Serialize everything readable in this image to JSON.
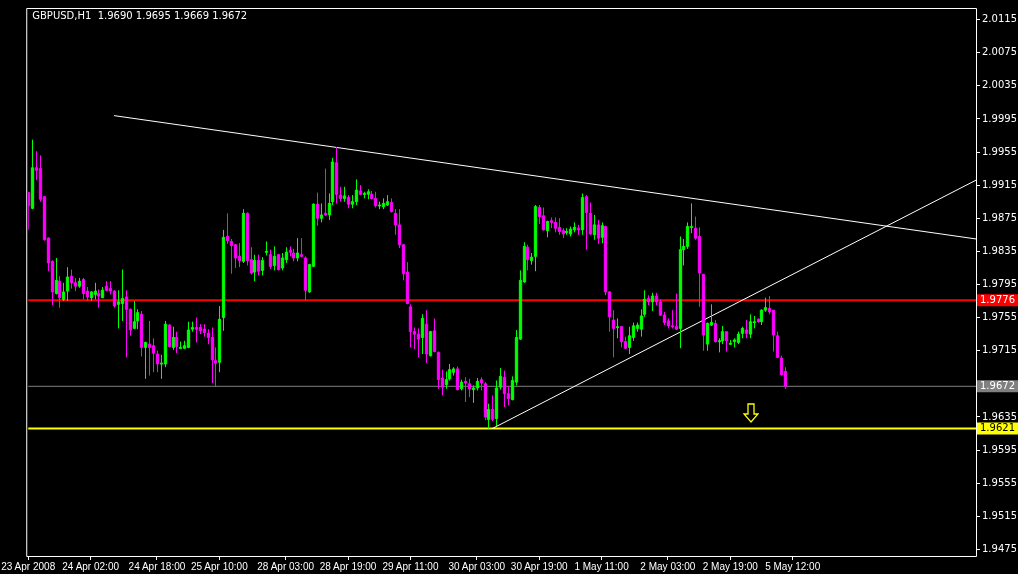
{
  "chart_data": {
    "type": "candlestick",
    "title": "GBPUSD,H1  1.9690 1.9695 1.9669 1.9672",
    "ylim": [
      1.9467,
      2.0129
    ],
    "categories": [
      "23 Apr 2008",
      null,
      null,
      null,
      null,
      null,
      null,
      null,
      null,
      null,
      null,
      null,
      null,
      null,
      null,
      null,
      "24 Apr 02:00",
      null,
      null,
      null,
      null,
      null,
      null,
      null,
      null,
      null,
      null,
      null,
      null,
      null,
      null,
      null,
      null,
      "24 Apr 18:00",
      null,
      null,
      null,
      null,
      null,
      null,
      null,
      null,
      null,
      null,
      null,
      null,
      null,
      null,
      null,
      "25 Apr 10:00",
      null,
      null,
      null,
      null,
      null,
      null,
      null,
      null,
      null,
      null,
      null,
      null,
      null,
      null,
      null,
      null,
      "28 Apr 03:00",
      null,
      null,
      null,
      null,
      null,
      null,
      null,
      null,
      null,
      null,
      null,
      null,
      null,
      null,
      null,
      "28 Apr 19:00",
      null,
      null,
      null,
      null,
      null,
      null,
      null,
      null,
      null,
      null,
      null,
      null,
      null,
      null,
      null,
      "29 Apr 11:00",
      null,
      null,
      null,
      null,
      null,
      null,
      null,
      null,
      null,
      null,
      null,
      null,
      null,
      null,
      null,
      null,
      "30 Apr 03:00",
      null,
      null,
      null,
      null,
      null,
      null,
      null,
      null,
      null,
      null,
      null,
      null,
      null,
      null,
      null,
      "30 Apr 19:00",
      null,
      null,
      null,
      null,
      null,
      null,
      null,
      null,
      null,
      null,
      null,
      null,
      null,
      null,
      null,
      "1 May 11:00",
      null,
      null,
      null,
      null,
      null,
      null,
      null,
      null,
      null,
      null,
      null,
      null,
      null,
      null,
      null,
      null,
      "2 May 03:00",
      null,
      null,
      null,
      null,
      null,
      null,
      null,
      null,
      null,
      null,
      null,
      null,
      null,
      null,
      null,
      "2 May 19:00",
      null,
      null,
      null,
      null,
      null,
      null,
      null,
      null,
      null,
      null,
      null,
      null,
      null,
      null,
      null,
      "5 May 12:00",
      null,
      null,
      null,
      null,
      null,
      null,
      null,
      null,
      null,
      null,
      null,
      null,
      null,
      null,
      null,
      null,
      null,
      null,
      null,
      null,
      null,
      null,
      null,
      null,
      null,
      null,
      null,
      null,
      null,
      null,
      null,
      null,
      null,
      null,
      null,
      null,
      null,
      null,
      null,
      null,
      null,
      null,
      null,
      null,
      null,
      null,
      null
    ],
    "yticks": [
      2.0115,
      2.0075,
      2.0035,
      1.9995,
      1.9955,
      1.9915,
      1.9875,
      1.9835,
      1.9795,
      1.9755,
      1.9715,
      1.9635,
      1.9595,
      1.9555,
      1.9515,
      1.9475
    ],
    "grid": false,
    "legend": false,
    "ref_lines": [
      {
        "axis": "y",
        "value": 1.9776,
        "label": "1.9776",
        "color": "#ff0000"
      },
      {
        "axis": "y",
        "value": 1.9672,
        "label": "1.9672",
        "color": "#808080"
      },
      {
        "axis": "y",
        "value": 1.9621,
        "label": "1.9621",
        "color": "#ffff00"
      }
    ],
    "series": [
      {
        "ohlc": [
          [
            1.9906,
            1.9907,
            1.9861,
            1.989
          ],
          [
            1.9887,
            1.997,
            1.9886,
            1.9936
          ],
          [
            1.9936,
            1.9956,
            1.9921,
            1.9933
          ],
          [
            1.9935,
            1.9951,
            1.9895,
            1.9898
          ],
          [
            1.9901,
            1.9902,
            1.9848,
            1.9849
          ],
          [
            1.9851,
            1.9852,
            1.9811,
            1.9821
          ],
          [
            1.9823,
            1.9824,
            1.977,
            1.9786
          ],
          [
            1.9784,
            1.9827,
            1.9783,
            1.98
          ],
          [
            1.9799,
            1.9805,
            1.9767,
            1.9779
          ],
          [
            1.9777,
            1.9797,
            1.9775,
            1.9786
          ],
          [
            1.9787,
            1.9816,
            1.9775,
            1.9804
          ],
          [
            1.9805,
            1.9813,
            1.979,
            1.9797
          ],
          [
            1.9797,
            1.9803,
            1.9787,
            1.9793
          ],
          [
            1.9793,
            1.9803,
            1.9791,
            1.9799
          ],
          [
            1.9801,
            1.9803,
            1.9777,
            1.9784
          ],
          [
            1.9787,
            1.9792,
            1.9775,
            1.978
          ],
          [
            1.9779,
            1.9787,
            1.9775,
            1.9786
          ],
          [
            1.9783,
            1.9797,
            1.9777,
            1.9787
          ],
          [
            1.9784,
            1.9789,
            1.9767,
            1.9781
          ],
          [
            1.9779,
            1.9792,
            1.9779,
            1.9788
          ],
          [
            1.9793,
            1.9799,
            1.9787,
            1.9788
          ],
          [
            1.979,
            1.9799,
            1.9783,
            1.9787
          ],
          [
            1.9787,
            1.9788,
            1.9767,
            1.9769
          ],
          [
            1.9771,
            1.9788,
            1.9742,
            1.9774
          ],
          [
            1.9772,
            1.9813,
            1.9751,
            1.9778
          ],
          [
            1.978,
            1.9788,
            1.9707,
            1.9765
          ],
          [
            1.9765,
            1.9766,
            1.9733,
            1.974
          ],
          [
            1.9742,
            1.9775,
            1.9741,
            1.975
          ],
          [
            1.9751,
            1.9765,
            1.9741,
            1.9761
          ],
          [
            1.9759,
            1.9763,
            1.9708,
            1.9719
          ],
          [
            1.9719,
            1.9726,
            1.9681,
            1.9725
          ],
          [
            1.9723,
            1.9751,
            1.9685,
            1.9719
          ],
          [
            1.9721,
            1.973,
            1.9689,
            1.9712
          ],
          [
            1.9711,
            1.9715,
            1.9689,
            1.9699
          ],
          [
            1.9699,
            1.971,
            1.9681,
            1.97
          ],
          [
            1.9699,
            1.9751,
            1.9695,
            1.9747
          ],
          [
            1.9746,
            1.9747,
            1.9719,
            1.972
          ],
          [
            1.9719,
            1.9744,
            1.9716,
            1.9731
          ],
          [
            1.9731,
            1.9738,
            1.9712,
            1.972
          ],
          [
            1.9718,
            1.9726,
            1.9717,
            1.9719
          ],
          [
            1.9718,
            1.9727,
            1.9717,
            1.9721
          ],
          [
            1.9719,
            1.975,
            1.9718,
            1.974
          ],
          [
            1.9741,
            1.975,
            1.9738,
            1.9743
          ],
          [
            1.9743,
            1.9755,
            1.9725,
            1.9741
          ],
          [
            1.9743,
            1.9747,
            1.9735,
            1.9739
          ],
          [
            1.9741,
            1.9747,
            1.9732,
            1.9737
          ],
          [
            1.9736,
            1.9741,
            1.9723,
            1.9731
          ],
          [
            1.9731,
            1.9743,
            1.9676,
            1.9704
          ],
          [
            1.9703,
            1.9719,
            1.9671,
            1.97
          ],
          [
            1.9701,
            1.9769,
            1.9689,
            1.9753
          ],
          [
            1.9755,
            1.9861,
            1.9739,
            1.9852
          ],
          [
            1.9853,
            1.9881,
            1.9844,
            1.9848
          ],
          [
            1.9847,
            1.985,
            1.9808,
            1.9842
          ],
          [
            1.9843,
            1.9844,
            1.9815,
            1.9827
          ],
          [
            1.9829,
            1.9845,
            1.9816,
            1.9824
          ],
          [
            1.9823,
            1.9886,
            1.9821,
            1.9881
          ],
          [
            1.9881,
            1.9882,
            1.9818,
            1.9824
          ],
          [
            1.9825,
            1.984,
            1.9807,
            1.9809
          ],
          [
            1.981,
            1.9831,
            1.9799,
            1.9824
          ],
          [
            1.9824,
            1.9831,
            1.9806,
            1.9811
          ],
          [
            1.9812,
            1.9828,
            1.9806,
            1.9824
          ],
          [
            1.9834,
            1.9847,
            1.983,
            1.9835
          ],
          [
            1.9831,
            1.9837,
            1.9814,
            1.9817
          ],
          [
            1.9818,
            1.9841,
            1.9812,
            1.9829
          ],
          [
            1.9831,
            1.9832,
            1.9812,
            1.9813
          ],
          [
            1.9815,
            1.9833,
            1.9812,
            1.9827
          ],
          [
            1.9825,
            1.984,
            1.9821,
            1.9834
          ],
          [
            1.9836,
            1.9841,
            1.9829,
            1.9834
          ],
          [
            1.9833,
            1.9838,
            1.9823,
            1.9827
          ],
          [
            1.9827,
            1.9851,
            1.9823,
            1.9833
          ],
          [
            1.9831,
            1.9851,
            1.9828,
            1.9829
          ],
          [
            1.9827,
            1.9829,
            1.9776,
            1.9788
          ],
          [
            1.9786,
            1.982,
            1.9785,
            1.9819
          ],
          [
            1.9817,
            1.9893,
            1.9816,
            1.9892
          ],
          [
            1.9892,
            1.9906,
            1.9866,
            1.9875
          ],
          [
            1.9875,
            1.9893,
            1.987,
            1.9879
          ],
          [
            1.9881,
            1.9935,
            1.9878,
            1.9879
          ],
          [
            1.9879,
            1.9905,
            1.9873,
            1.9893
          ],
          [
            1.9895,
            1.9948,
            1.9891,
            1.9943
          ],
          [
            1.9942,
            1.9961,
            1.9893,
            1.9904
          ],
          [
            1.9903,
            1.9913,
            1.9895,
            1.9899
          ],
          [
            1.9899,
            1.9913,
            1.9895,
            1.9902
          ],
          [
            1.99,
            1.9903,
            1.9887,
            1.9892
          ],
          [
            1.9892,
            1.9903,
            1.9887,
            1.9895
          ],
          [
            1.9895,
            1.9922,
            1.9891,
            1.9909
          ],
          [
            1.9908,
            1.9915,
            1.9903,
            1.9904
          ],
          [
            1.9904,
            1.9907,
            1.9899,
            1.9905
          ],
          [
            1.9904,
            1.991,
            1.9898,
            1.9907
          ],
          [
            1.9904,
            1.9908,
            1.9898,
            1.9899
          ],
          [
            1.9899,
            1.9907,
            1.9888,
            1.989
          ],
          [
            1.989,
            1.9895,
            1.9886,
            1.9891
          ],
          [
            1.9889,
            1.9899,
            1.9886,
            1.9893
          ],
          [
            1.9891,
            1.9903,
            1.989,
            1.9895
          ],
          [
            1.9894,
            1.9899,
            1.9882,
            1.9883
          ],
          [
            1.9881,
            1.9886,
            1.9855,
            1.9867
          ],
          [
            1.9867,
            1.9886,
            1.9839,
            1.9843
          ],
          [
            1.9843,
            1.9844,
            1.98,
            1.9808
          ],
          [
            1.981,
            1.9822,
            1.9771,
            1.9772
          ],
          [
            1.9768,
            1.9771,
            1.9719,
            1.9738
          ],
          [
            1.9738,
            1.9743,
            1.9717,
            1.9735
          ],
          [
            1.9735,
            1.9742,
            1.9707,
            1.9729
          ],
          [
            1.9731,
            1.9759,
            1.9711,
            1.9754
          ],
          [
            1.9747,
            1.9764,
            1.97,
            1.9711
          ],
          [
            1.9709,
            1.9739,
            1.9708,
            1.9738
          ],
          [
            1.9739,
            1.9754,
            1.9713,
            1.9714
          ],
          [
            1.9713,
            1.9714,
            1.9669,
            1.968
          ],
          [
            1.9682,
            1.9692,
            1.9661,
            1.9671
          ],
          [
            1.9674,
            1.969,
            1.9669,
            1.968
          ],
          [
            1.9681,
            1.9699,
            1.9679,
            1.9692
          ],
          [
            1.9689,
            1.9695,
            1.9685,
            1.9693
          ],
          [
            1.9693,
            1.9696,
            1.9667,
            1.9668
          ],
          [
            1.9669,
            1.968,
            1.9667,
            1.9677
          ],
          [
            1.9678,
            1.9683,
            1.9653,
            1.9676
          ],
          [
            1.9675,
            1.9681,
            1.9659,
            1.9669
          ],
          [
            1.9668,
            1.9673,
            1.9652,
            1.967
          ],
          [
            1.967,
            1.9682,
            1.9667,
            1.9678
          ],
          [
            1.968,
            1.9683,
            1.9667,
            1.9676
          ],
          [
            1.9675,
            1.9677,
            1.9631,
            1.9635
          ],
          [
            1.9632,
            1.9651,
            1.9621,
            1.9644
          ],
          [
            1.9644,
            1.9661,
            1.963,
            1.9632
          ],
          [
            1.9633,
            1.9679,
            1.9624,
            1.967
          ],
          [
            1.9671,
            1.9694,
            1.9668,
            1.9684
          ],
          [
            1.9683,
            1.9691,
            1.9647,
            1.9663
          ],
          [
            1.9663,
            1.9672,
            1.9649,
            1.9657
          ],
          [
            1.9656,
            1.9684,
            1.9655,
            1.9679
          ],
          [
            1.9677,
            1.974,
            1.9673,
            1.9731
          ],
          [
            1.9729,
            1.9812,
            1.9728,
            1.98
          ],
          [
            1.9798,
            1.9846,
            1.9797,
            1.9841
          ],
          [
            1.984,
            1.9843,
            1.9812,
            1.9825
          ],
          [
            1.9824,
            1.9833,
            1.9819,
            1.9828
          ],
          [
            1.9829,
            1.9891,
            1.9811,
            1.9889
          ],
          [
            1.9888,
            1.9891,
            1.9868,
            1.9877
          ],
          [
            1.9878,
            1.9888,
            1.986,
            1.9861
          ],
          [
            1.986,
            1.9872,
            1.9852,
            1.9871
          ],
          [
            1.9872,
            1.9876,
            1.9863,
            1.987
          ],
          [
            1.987,
            1.9876,
            1.9858,
            1.9863
          ],
          [
            1.9864,
            1.9875,
            1.9855,
            1.9859
          ],
          [
            1.986,
            1.9863,
            1.9851,
            1.9856
          ],
          [
            1.9858,
            1.9863,
            1.9855,
            1.9859
          ],
          [
            1.9856,
            1.9865,
            1.9853,
            1.9862
          ],
          [
            1.9861,
            1.987,
            1.9858,
            1.9864
          ],
          [
            1.9863,
            1.9867,
            1.9855,
            1.9861
          ],
          [
            1.9861,
            1.9905,
            1.9855,
            1.99
          ],
          [
            1.9901,
            1.9903,
            1.9837,
            1.9882
          ],
          [
            1.9881,
            1.9894,
            1.9855,
            1.9856
          ],
          [
            1.9855,
            1.9879,
            1.9849,
            1.9867
          ],
          [
            1.9867,
            1.9873,
            1.9844,
            1.9851
          ],
          [
            1.9852,
            1.987,
            1.9845,
            1.9866
          ],
          [
            1.9865,
            1.9866,
            1.9782,
            1.9786
          ],
          [
            1.9786,
            1.9787,
            1.9738,
            1.9756
          ],
          [
            1.9752,
            1.9764,
            1.9707,
            1.9742
          ],
          [
            1.9743,
            1.9754,
            1.973,
            1.9744
          ],
          [
            1.9744,
            1.9745,
            1.9719,
            1.9726
          ],
          [
            1.9726,
            1.9732,
            1.9717,
            1.9718
          ],
          [
            1.9719,
            1.9744,
            1.9711,
            1.9733
          ],
          [
            1.9731,
            1.9749,
            1.9727,
            1.9745
          ],
          [
            1.9742,
            1.9749,
            1.9738,
            1.9746
          ],
          [
            1.9741,
            1.9765,
            1.9732,
            1.9757
          ],
          [
            1.9759,
            1.9788,
            1.9756,
            1.9777
          ],
          [
            1.9778,
            1.9782,
            1.977,
            1.9774
          ],
          [
            1.9774,
            1.9785,
            1.9763,
            1.9781
          ],
          [
            1.9781,
            1.9785,
            1.977,
            1.9774
          ],
          [
            1.9774,
            1.9777,
            1.9757,
            1.9758
          ],
          [
            1.9758,
            1.9762,
            1.9746,
            1.9749
          ],
          [
            1.9751,
            1.9754,
            1.9742,
            1.9745
          ],
          [
            1.9745,
            1.9764,
            1.9742,
            1.9744
          ],
          [
            1.9744,
            1.9784,
            1.974,
            1.9741
          ],
          [
            1.9742,
            1.9853,
            1.9718,
            1.9837
          ],
          [
            1.9837,
            1.985,
            1.9818,
            1.9841
          ],
          [
            1.9841,
            1.987,
            1.9838,
            1.9865
          ],
          [
            1.9864,
            1.9893,
            1.9857,
            1.9865
          ],
          [
            1.9863,
            1.9877,
            1.9849,
            1.9851
          ],
          [
            1.9853,
            1.9864,
            1.9768,
            1.9809
          ],
          [
            1.9807,
            1.9808,
            1.9715,
            1.9734
          ],
          [
            1.9723,
            1.9749,
            1.9715,
            1.9748
          ],
          [
            1.9746,
            1.9771,
            1.9745,
            1.9749
          ],
          [
            1.9748,
            1.9752,
            1.9725,
            1.9726
          ],
          [
            1.9726,
            1.973,
            1.9713,
            1.9727
          ],
          [
            1.9727,
            1.9745,
            1.9723,
            1.9738
          ],
          [
            1.9738,
            1.9738,
            1.9714,
            1.9727
          ],
          [
            1.9723,
            1.9728,
            1.9722,
            1.9724
          ],
          [
            1.9726,
            1.973,
            1.9719,
            1.9728
          ],
          [
            1.9725,
            1.9738,
            1.9723,
            1.9735
          ],
          [
            1.9736,
            1.9744,
            1.973,
            1.9742
          ],
          [
            1.974,
            1.9752,
            1.973,
            1.9736
          ],
          [
            1.9735,
            1.9759,
            1.973,
            1.975
          ],
          [
            1.9749,
            1.9757,
            1.9742,
            1.975
          ],
          [
            1.9753,
            1.9754,
            1.9749,
            1.975
          ],
          [
            1.975,
            1.9765,
            1.9746,
            1.9764
          ],
          [
            1.9764,
            1.9779,
            1.9762,
            1.9767
          ],
          [
            1.9766,
            1.9781,
            1.9759,
            1.9762
          ],
          [
            1.9764,
            1.9764,
            1.9714,
            1.9734
          ],
          [
            1.9733,
            1.9738,
            1.9706,
            1.9707
          ],
          [
            1.9706,
            1.9709,
            1.9685,
            1.9686
          ],
          [
            1.969,
            1.9695,
            1.9669,
            1.9672
          ],
          null,
          null,
          null,
          null,
          null,
          null,
          null,
          null,
          null,
          null,
          null,
          null,
          null,
          null,
          null,
          null,
          null,
          null,
          null,
          null,
          null,
          null,
          null,
          null,
          null,
          null,
          null,
          null,
          null,
          null,
          null,
          null,
          null,
          null,
          null,
          null,
          null,
          null,
          null,
          null,
          null,
          null,
          null,
          null,
          null,
          null,
          null,
          null,
          null
        ],
        "colors": [
          "#ff00ff",
          "#00ff00",
          "#ff00ff",
          "#ff00ff",
          "#ff00ff",
          "#ff00ff",
          "#ff00ff",
          "#00ff00",
          "#ff00ff",
          "#00ff00",
          "#00ff00",
          "#ff00ff",
          "#ff00ff",
          "#00ff00",
          "#ff00ff",
          "#ff00ff",
          "#00ff00",
          "#00ff00",
          "#ff00ff",
          "#00ff00",
          "#ff00ff",
          "#ff00ff",
          "#ff00ff",
          "#00ff00",
          "#00ff00",
          "#ff00ff",
          "#ff00ff",
          "#00ff00",
          "#00ff00",
          "#ff00ff",
          "#00ff00",
          "#ff00ff",
          "#ff00ff",
          "#ff00ff",
          "#00ff00",
          "#00ff00",
          "#ff00ff",
          "#00ff00",
          "#ff00ff",
          "#00ff00",
          "#00ff00",
          "#00ff00",
          "#00ff00",
          "#ff00ff",
          "#ff00ff",
          "#ff00ff",
          "#ff00ff",
          "#ff00ff",
          "#ff00ff",
          "#00ff00",
          "#00ff00",
          "#ff00ff",
          "#ff00ff",
          "#ff00ff",
          "#ff00ff",
          "#00ff00",
          "#ff00ff",
          "#ff00ff",
          "#00ff00",
          "#ff00ff",
          "#00ff00",
          "#00ff00",
          "#ff00ff",
          "#00ff00",
          "#ff00ff",
          "#00ff00",
          "#00ff00",
          "#ff00ff",
          "#ff00ff",
          "#00ff00",
          "#ff00ff",
          "#ff00ff",
          "#00ff00",
          "#00ff00",
          "#ff00ff",
          "#00ff00",
          "#ff00ff",
          "#00ff00",
          "#00ff00",
          "#ff00ff",
          "#ff00ff",
          "#00ff00",
          "#ff00ff",
          "#00ff00",
          "#00ff00",
          "#ff00ff",
          "#00ff00",
          "#00ff00",
          "#ff00ff",
          "#ff00ff",
          "#00ff00",
          "#00ff00",
          "#00ff00",
          "#ff00ff",
          "#ff00ff",
          "#ff00ff",
          "#ff00ff",
          "#ff00ff",
          "#ff00ff",
          "#ff00ff",
          "#ff00ff",
          "#00ff00",
          "#ff00ff",
          "#00ff00",
          "#ff00ff",
          "#ff00ff",
          "#ff00ff",
          "#00ff00",
          "#00ff00",
          "#00ff00",
          "#ff00ff",
          "#00ff00",
          "#ff00ff",
          "#ff00ff",
          "#00ff00",
          "#00ff00",
          "#ff00ff",
          "#ff00ff",
          "#00ff00",
          "#ff00ff",
          "#00ff00",
          "#00ff00",
          "#ff00ff",
          "#ff00ff",
          "#00ff00",
          "#00ff00",
          "#00ff00",
          "#00ff00",
          "#ff00ff",
          "#00ff00",
          "#00ff00",
          "#ff00ff",
          "#ff00ff",
          "#00ff00",
          "#ff00ff",
          "#ff00ff",
          "#ff00ff",
          "#ff00ff",
          "#00ff00",
          "#00ff00",
          "#00ff00",
          "#ff00ff",
          "#00ff00",
          "#ff00ff",
          "#ff00ff",
          "#00ff00",
          "#ff00ff",
          "#00ff00",
          "#ff00ff",
          "#ff00ff",
          "#ff00ff",
          "#00ff00",
          "#ff00ff",
          "#ff00ff",
          "#00ff00",
          "#00ff00",
          "#00ff00",
          "#00ff00",
          "#00ff00",
          "#ff00ff",
          "#00ff00",
          "#ff00ff",
          "#ff00ff",
          "#ff00ff",
          "#ff00ff",
          "#ff00ff",
          "#ff00ff",
          "#00ff00",
          "#00ff00",
          "#00ff00",
          "#00ff00",
          "#ff00ff",
          "#ff00ff",
          "#ff00ff",
          "#00ff00",
          "#00ff00",
          "#ff00ff",
          "#00ff00",
          "#00ff00",
          "#ff00ff",
          "#00ff00",
          "#00ff00",
          "#00ff00",
          "#00ff00",
          "#ff00ff",
          "#00ff00",
          "#00ff00",
          "#ff00ff",
          "#00ff00",
          "#00ff00",
          "#ff00ff",
          "#ff00ff",
          "#ff00ff",
          "#ff00ff",
          "#ff00ff",
          null,
          null,
          null,
          null,
          null,
          null,
          null,
          null,
          null,
          null,
          null,
          null,
          null,
          null,
          null,
          null,
          null,
          null,
          null,
          null,
          null,
          null,
          null,
          null,
          null,
          null,
          null,
          null,
          null,
          null,
          null,
          null,
          null,
          null,
          null,
          null,
          null,
          null,
          null,
          null,
          null,
          null,
          null,
          null,
          null,
          null,
          null,
          null,
          null
        ]
      },
      {
        "type": "line",
        "color": "#ffffff",
        "values": [
          null,
          null,
          null,
          null,
          null,
          null,
          null,
          null,
          null,
          null,
          null,
          null,
          null,
          null,
          null,
          null,
          null,
          null,
          null,
          null,
          null,
          null,
          1.9999,
          null,
          null,
          null,
          null,
          null,
          null,
          null,
          null,
          null,
          null,
          null,
          null,
          null,
          null,
          null,
          null,
          null,
          null,
          null,
          null,
          null,
          null,
          null,
          null,
          null,
          null,
          null,
          null,
          null,
          null,
          null,
          null,
          null,
          null,
          null,
          null,
          null,
          null,
          null,
          null,
          null,
          null,
          null,
          null,
          null,
          null,
          null,
          null,
          null,
          null,
          null,
          null,
          null,
          null,
          null,
          null,
          null,
          null,
          null,
          null,
          null,
          null,
          null,
          null,
          null,
          null,
          null,
          null,
          null,
          null,
          null,
          null,
          null,
          null,
          null,
          null,
          null,
          null,
          null,
          null,
          null,
          null,
          null,
          null,
          null,
          null,
          null,
          null,
          null,
          null,
          null,
          null,
          null,
          null,
          null,
          null,
          null,
          null,
          null,
          null,
          null,
          null,
          null,
          null,
          null,
          null,
          null,
          null,
          null,
          null,
          null,
          null,
          null,
          null,
          null,
          null,
          null,
          null,
          null,
          null,
          null,
          null,
          null,
          null,
          null,
          null,
          null,
          null,
          null,
          null,
          null,
          null,
          null,
          null,
          null,
          null,
          null,
          null,
          null,
          null,
          null,
          null,
          null,
          null,
          null,
          null,
          null,
          null,
          null,
          null,
          null,
          null,
          null,
          null,
          null,
          null,
          null,
          null,
          null,
          null,
          null,
          null,
          null,
          null,
          null,
          null,
          null,
          null,
          null,
          null,
          null,
          null,
          null,
          null,
          null,
          null,
          null,
          null,
          null,
          null,
          null,
          null,
          null,
          null,
          null,
          null,
          null,
          null,
          null,
          null,
          null,
          null,
          null,
          null,
          null,
          null,
          null,
          null,
          null,
          null,
          null,
          null,
          null,
          null,
          null,
          null,
          null,
          null,
          null,
          null,
          null,
          null,
          null,
          null,
          null,
          null,
          null,
          null,
          null,
          null,
          1.985
        ]
      },
      {
        "type": "line",
        "color": "#ffffff",
        "values": [
          null,
          null,
          null,
          null,
          null,
          null,
          null,
          null,
          null,
          null,
          null,
          null,
          null,
          null,
          null,
          null,
          null,
          null,
          null,
          null,
          null,
          null,
          null,
          null,
          null,
          null,
          null,
          null,
          null,
          null,
          null,
          null,
          null,
          null,
          null,
          null,
          null,
          null,
          null,
          null,
          null,
          null,
          null,
          null,
          null,
          null,
          null,
          null,
          null,
          null,
          null,
          null,
          null,
          null,
          null,
          null,
          null,
          null,
          null,
          null,
          null,
          null,
          null,
          null,
          null,
          null,
          null,
          null,
          null,
          null,
          null,
          null,
          null,
          null,
          null,
          null,
          null,
          null,
          null,
          null,
          null,
          null,
          null,
          null,
          null,
          null,
          null,
          null,
          null,
          null,
          null,
          null,
          null,
          null,
          null,
          null,
          null,
          null,
          null,
          null,
          null,
          null,
          null,
          null,
          null,
          null,
          null,
          null,
          null,
          null,
          null,
          null,
          null,
          null,
          null,
          null,
          null,
          null,
          null,
          1.9621,
          null,
          null,
          null,
          null,
          null,
          null,
          null,
          null,
          null,
          null,
          null,
          null,
          null,
          null,
          null,
          null,
          null,
          null,
          null,
          null,
          null,
          null,
          null,
          null,
          null,
          null,
          null,
          null,
          null,
          null,
          null,
          null,
          null,
          null,
          null,
          null,
          null,
          null,
          null,
          null,
          null,
          null,
          null,
          null,
          null,
          null,
          null,
          null,
          null,
          null,
          null,
          null,
          null,
          null,
          null,
          null,
          null,
          null,
          null,
          null,
          null,
          null,
          null,
          null,
          null,
          null,
          null,
          null,
          null,
          null,
          null,
          null,
          null,
          null,
          null,
          null,
          null,
          null,
          null,
          null,
          null,
          null,
          null,
          null,
          null,
          null,
          null,
          null,
          null,
          null,
          null,
          null,
          null,
          null,
          null,
          null,
          null,
          null,
          null,
          null,
          null,
          null,
          null,
          null,
          null,
          null,
          null,
          null,
          null,
          null,
          null,
          null,
          null,
          null,
          null,
          null,
          null,
          null,
          null,
          null,
          null,
          null,
          null,
          1.9921
        ]
      }
    ]
  }
}
